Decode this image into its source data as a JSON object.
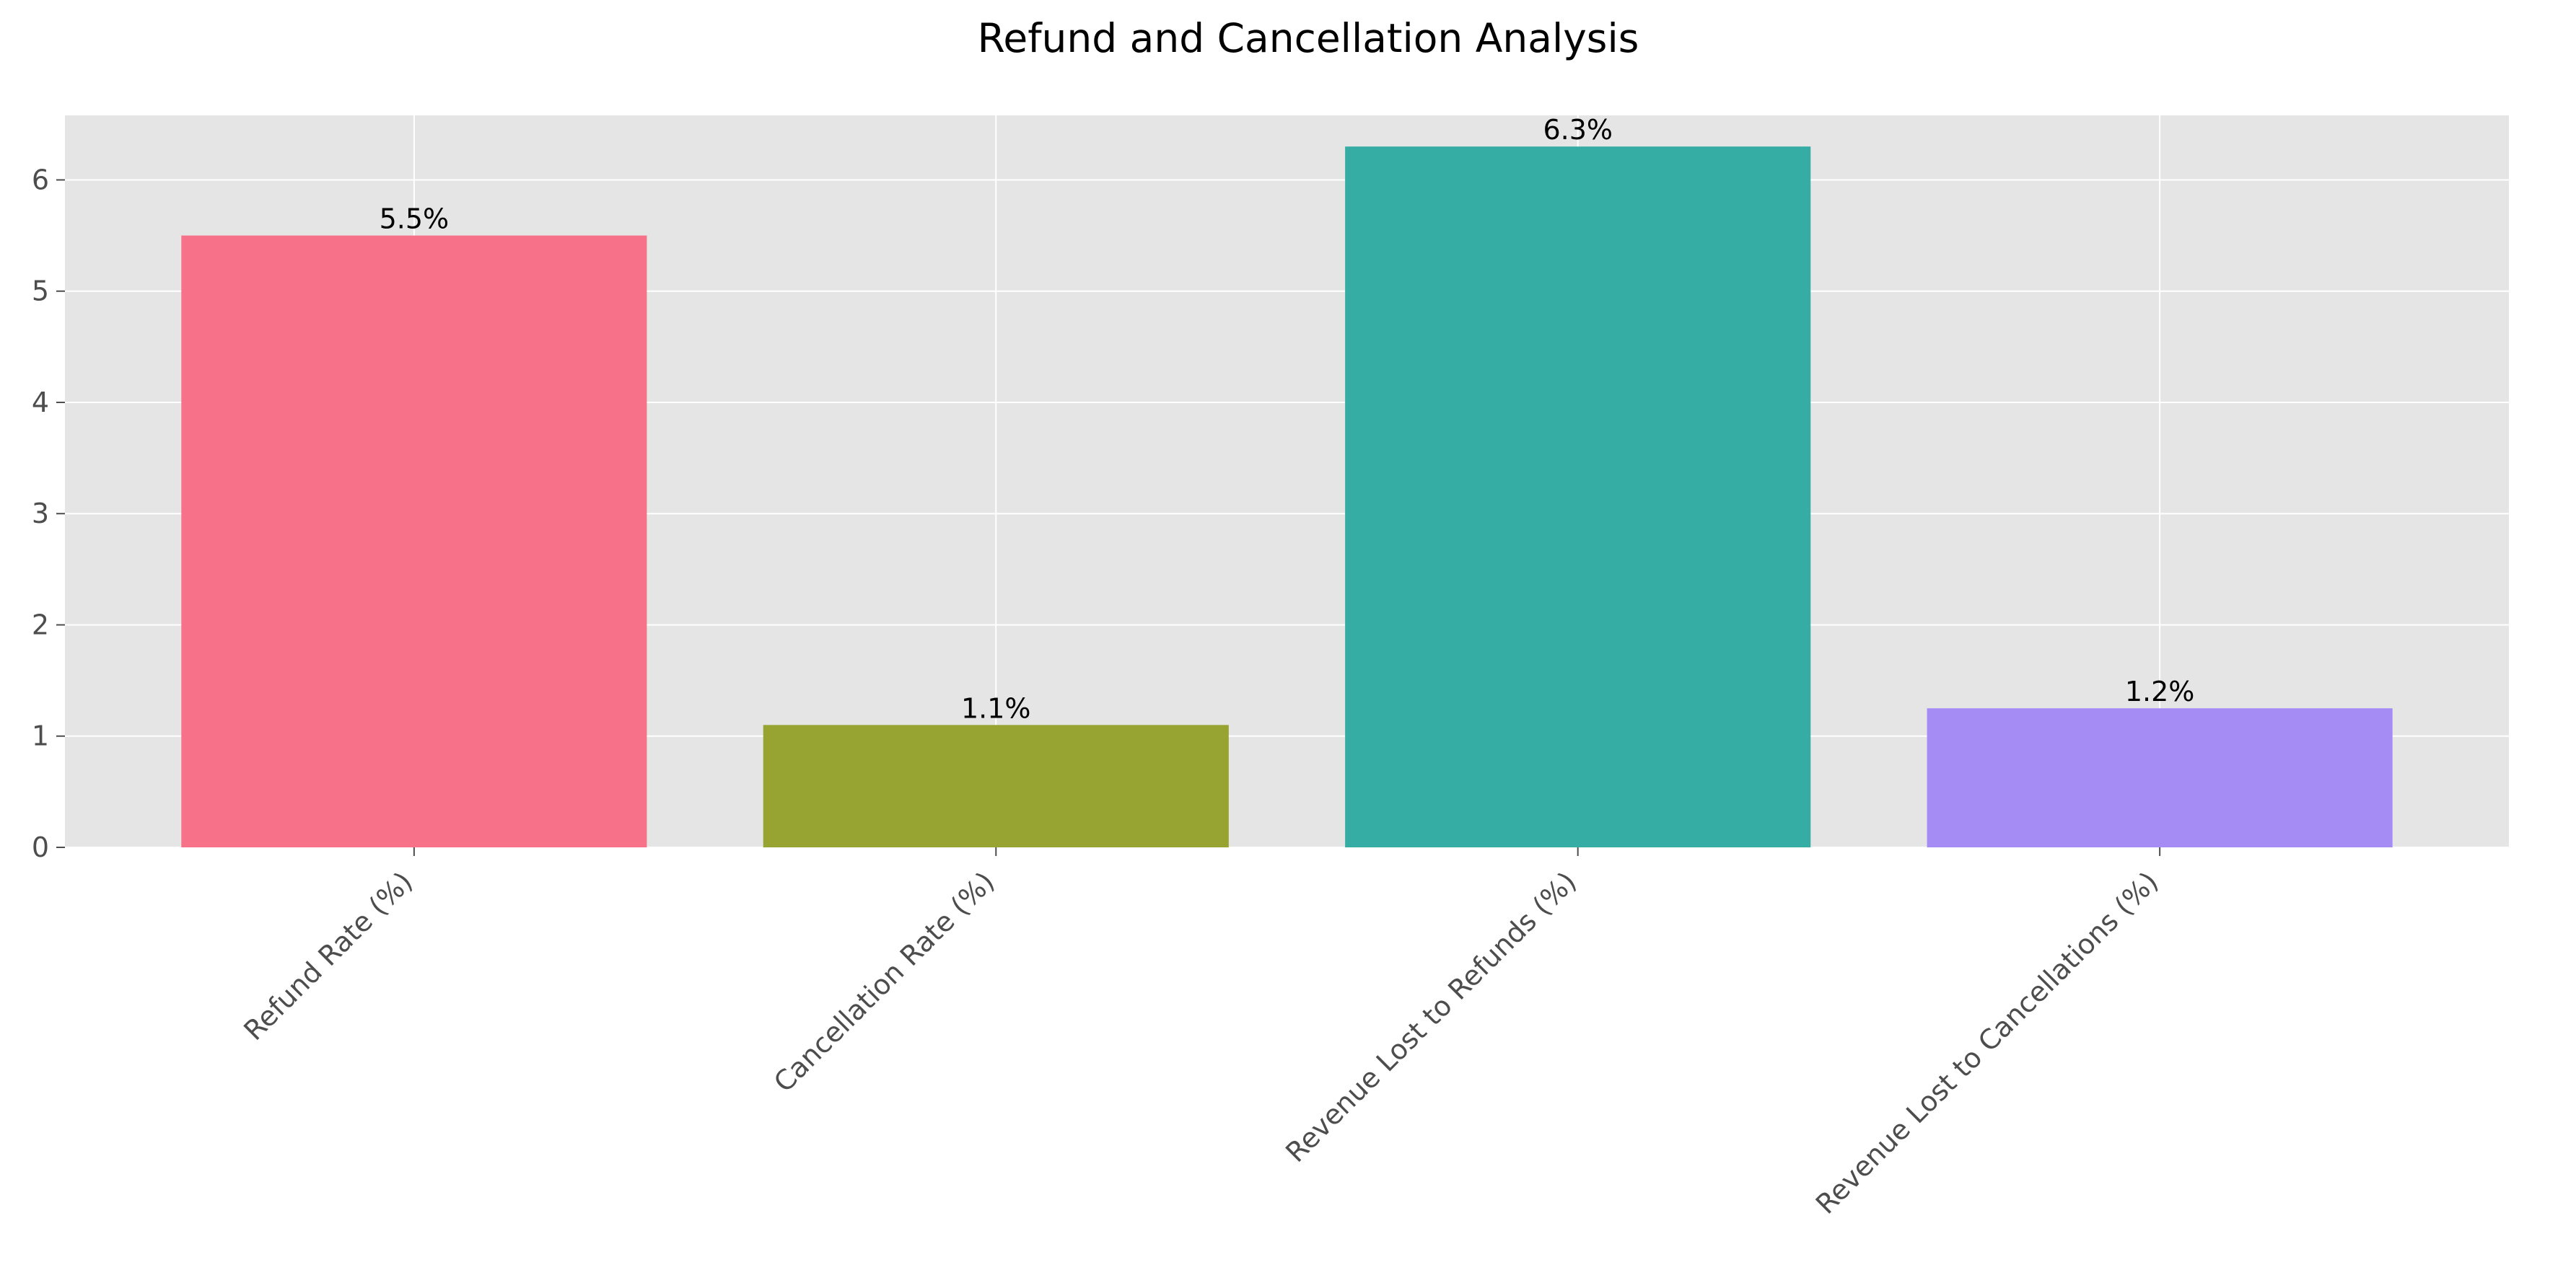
{
  "chart_data": {
    "type": "bar",
    "title": "Refund and Cancellation Analysis",
    "xlabel": "",
    "ylabel": "",
    "categories": [
      "Refund Rate (%)",
      "Cancellation Rate (%)",
      "Revenue Lost to Refunds (%)",
      "Revenue Lost to Cancellations (%)"
    ],
    "values": [
      5.5,
      1.1,
      6.3,
      1.25
    ],
    "data_labels": [
      "5.5%",
      "1.1%",
      "6.3%",
      "1.2%"
    ],
    "colors": [
      "#f77189",
      "#97a431",
      "#36ada4",
      "#a48cf4"
    ],
    "ylim": [
      0,
      6.58
    ],
    "yticks": [
      0,
      1,
      2,
      3,
      4,
      5,
      6
    ],
    "grid": true,
    "legend": "none",
    "style": {
      "axes_background": "#e5e5e5",
      "grid_color": "#ffffff",
      "tick_color": "#4d4d4d"
    }
  }
}
